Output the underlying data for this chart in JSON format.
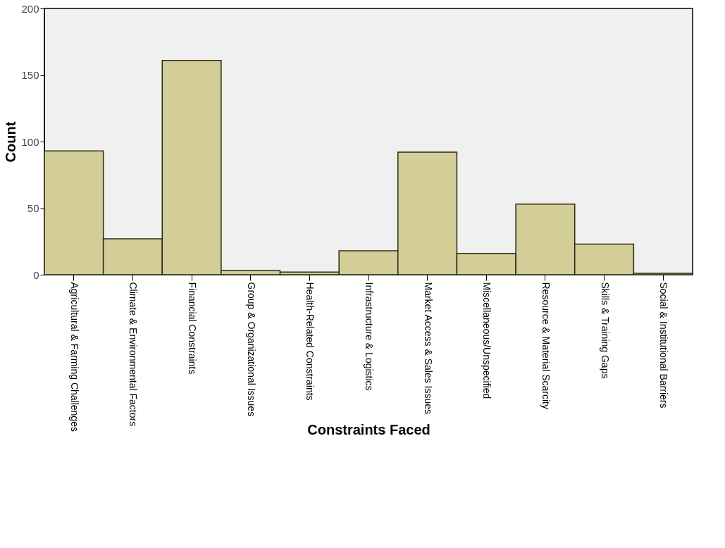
{
  "chart_data": {
    "type": "bar",
    "xlabel": "Constraints Faced",
    "ylabel": "Count",
    "categories": [
      "Agricultural & Farming Challenges",
      "Climate & Environmental Factors",
      "Financial Constraints",
      "Group & Organizational Issues",
      "Health-Related Constraints",
      "Infrastructure & Logistics",
      "Market Access & Sales Issues",
      "Miscellaneous/Unspecified",
      "Resource & Material Scarcity",
      "Skills & Training Gaps",
      "Social & Institutional Barriers"
    ],
    "values": [
      93,
      27,
      161,
      3,
      2,
      18,
      92,
      16,
      53,
      23,
      1
    ],
    "color": "#d3ce97",
    "ylim": [
      0,
      200
    ],
    "yticks": [
      0,
      50,
      100,
      150,
      200
    ],
    "grid": false
  }
}
